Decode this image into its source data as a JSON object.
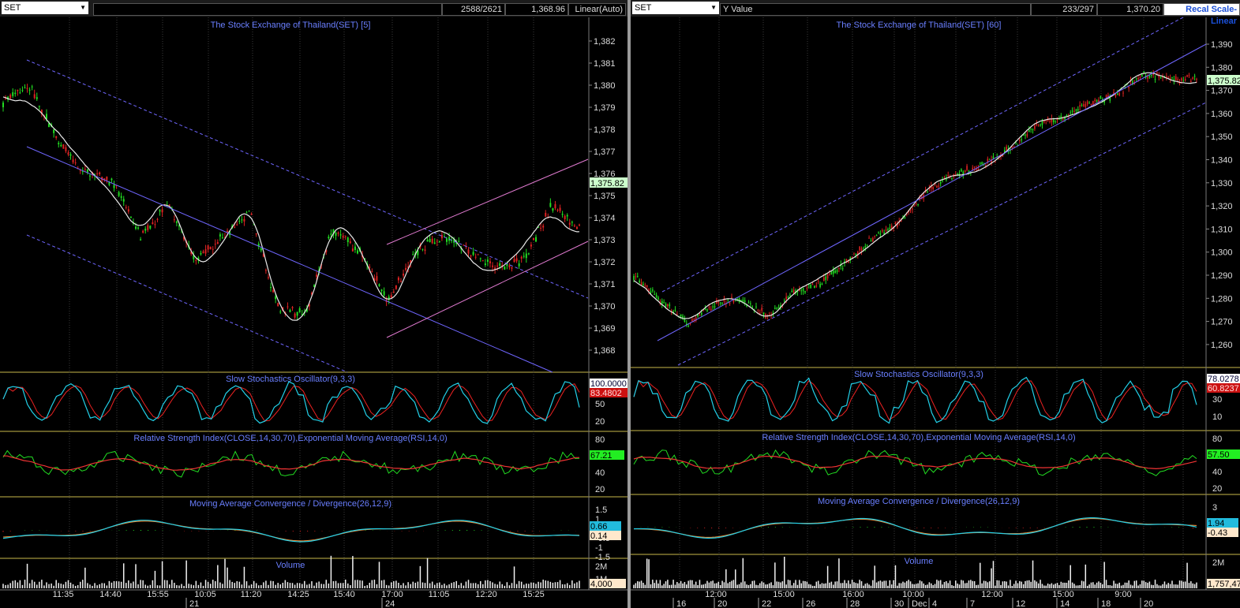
{
  "left": {
    "symbol": "SET",
    "counter": "2588/2621",
    "cursor_value": "1,368.96",
    "scale_mode": "Linear(Auto)",
    "price_title": "The Stock Exchange of Thailand(SET) [5]",
    "price_axis_ticks": [
      "1,382",
      "1,381",
      "1,380",
      "1,379",
      "1,378",
      "1,377",
      "1,376",
      "1,375",
      "1,374",
      "1,373",
      "1,372",
      "1,371",
      "1,370",
      "1,369",
      "1,368"
    ],
    "last_price_label": "1,375.82",
    "stoch_title": "Slow Stochastics Oscillator(9,3,3)",
    "stoch_values": [
      "100.0000",
      "83.4802"
    ],
    "stoch_ticks": [
      "50",
      "20"
    ],
    "rsi_title": "Relative Strength Index(CLOSE,14,30,70),Exponential Moving Average(RSI,14,0)",
    "rsi_ticks": [
      "80",
      "60",
      "40",
      "20"
    ],
    "rsi_value": "67.21",
    "macd_title": "Moving Average Convergence / Divergence(26,12,9)",
    "macd_ticks": [
      "1.5",
      "1",
      "0.5",
      "-0.5",
      "-1",
      "-1.5"
    ],
    "macd_values": [
      "0.66",
      "0.14"
    ],
    "volume_title": "Volume",
    "volume_ticks": [
      "2M",
      "1M"
    ],
    "volume_value": "4,000",
    "time_labels": [
      "11:35",
      "14:40",
      "15:55",
      "10:05",
      "11:20",
      "14:25",
      "15:40",
      "17:00",
      "11:05",
      "12:20",
      "15:25"
    ],
    "date_labels": [
      "21",
      "24"
    ]
  },
  "right": {
    "symbol": "SET",
    "cursor_label": "Y Value",
    "counter": "233/297",
    "cursor_value": "1,370.20",
    "scale_button": "Recal Scale-Linear",
    "price_title": "The Stock Exchange of Thailand(SET) [60]",
    "price_axis_ticks": [
      "1,390",
      "1,380",
      "1,370",
      "1,360",
      "1,350",
      "1,340",
      "1,330",
      "1,320",
      "1,310",
      "1,300",
      "1,290",
      "1,280",
      "1,270",
      "1,260"
    ],
    "last_price_label": "1,375.82",
    "stoch_title": "Slow Stochastics Oscillator(9,3,3)",
    "stoch_values": [
      "78.0278",
      "60.8237"
    ],
    "stoch_ticks": [
      "30",
      "10"
    ],
    "rsi_title": "Relative Strength Index(CLOSE,14,30,70),Exponential Moving Average(RSI,14,0)",
    "rsi_ticks": [
      "80",
      "60",
      "40",
      "20"
    ],
    "rsi_value": "57.50",
    "macd_title": "Moving Average Convergence / Divergence(26,12,9)",
    "macd_ticks": [
      "3",
      "-5"
    ],
    "macd_values": [
      "1.94",
      "-0.43"
    ],
    "volume_title": "Volume",
    "volume_ticks": [
      "2M"
    ],
    "volume_value": "1,757,47",
    "time_labels": [
      "12:00",
      "15:00",
      "16:00",
      "10:00",
      "12:00",
      "15:00",
      "9:00"
    ],
    "date_labels": [
      "16",
      "20",
      "22",
      "26",
      "28",
      "30",
      "Dec",
      "4",
      "7",
      "12",
      "14",
      "18",
      "20"
    ]
  },
  "colors": {
    "up": "#22dd22",
    "down": "#dd2222",
    "title": "#6a7fff",
    "channel": "#7a6ef0",
    "pink_channel": "#e07ad0",
    "ma": "#e8e8e8",
    "stoch_k": "#22d0e8",
    "stoch_d": "#ee2222",
    "rsi": "#22dd22",
    "rsi_ema": "#ee3333",
    "macd": "#22d0e8",
    "macd_signal": "#ee8833",
    "separator": "#c8b84a"
  }
}
